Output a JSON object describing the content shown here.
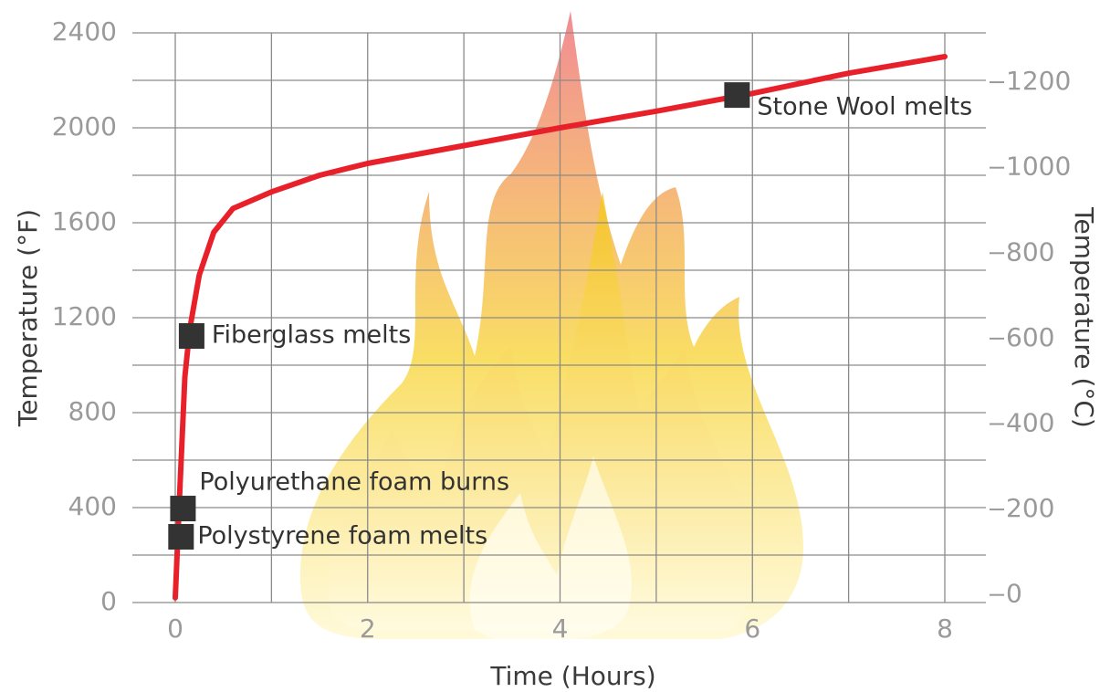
{
  "chart_data": {
    "type": "line",
    "x_label": "Time (Hours)",
    "y_label": "Temperature (°F)",
    "y2_label": "Temperature (°C)",
    "x": [
      0,
      0.05,
      0.1,
      0.15,
      0.25,
      0.4,
      0.6,
      1.0,
      1.5,
      2,
      3,
      4,
      5,
      6,
      7,
      8
    ],
    "values": [
      20,
      500,
      950,
      1150,
      1380,
      1560,
      1660,
      1730,
      1800,
      1850,
      1925,
      2000,
      2070,
      2145,
      2230,
      2300
    ],
    "color": "#e8202a",
    "xlim": [
      0,
      8
    ],
    "xticks": [
      0,
      2,
      4,
      6,
      8
    ],
    "ylim": [
      0,
      2400
    ],
    "yticks": [
      0,
      400,
      800,
      1200,
      1600,
      2000,
      2400
    ],
    "y2lim": [
      -17.78,
      1315.56
    ],
    "y2ticks": [
      0,
      200,
      400,
      600,
      800,
      1000,
      1200
    ],
    "grid": true,
    "marker_color": "#333333",
    "annotations": [
      {
        "label": "Stone Wool melts",
        "x": 5.84,
        "y": 2138
      },
      {
        "label": "Fiberglass melts",
        "x": 0.17,
        "y": 1123
      },
      {
        "label": "Polyurethane foam burns",
        "x": 0.08,
        "y": 396
      },
      {
        "label": "Polystyrene foam melts",
        "x": 0.06,
        "y": 277
      }
    ]
  }
}
